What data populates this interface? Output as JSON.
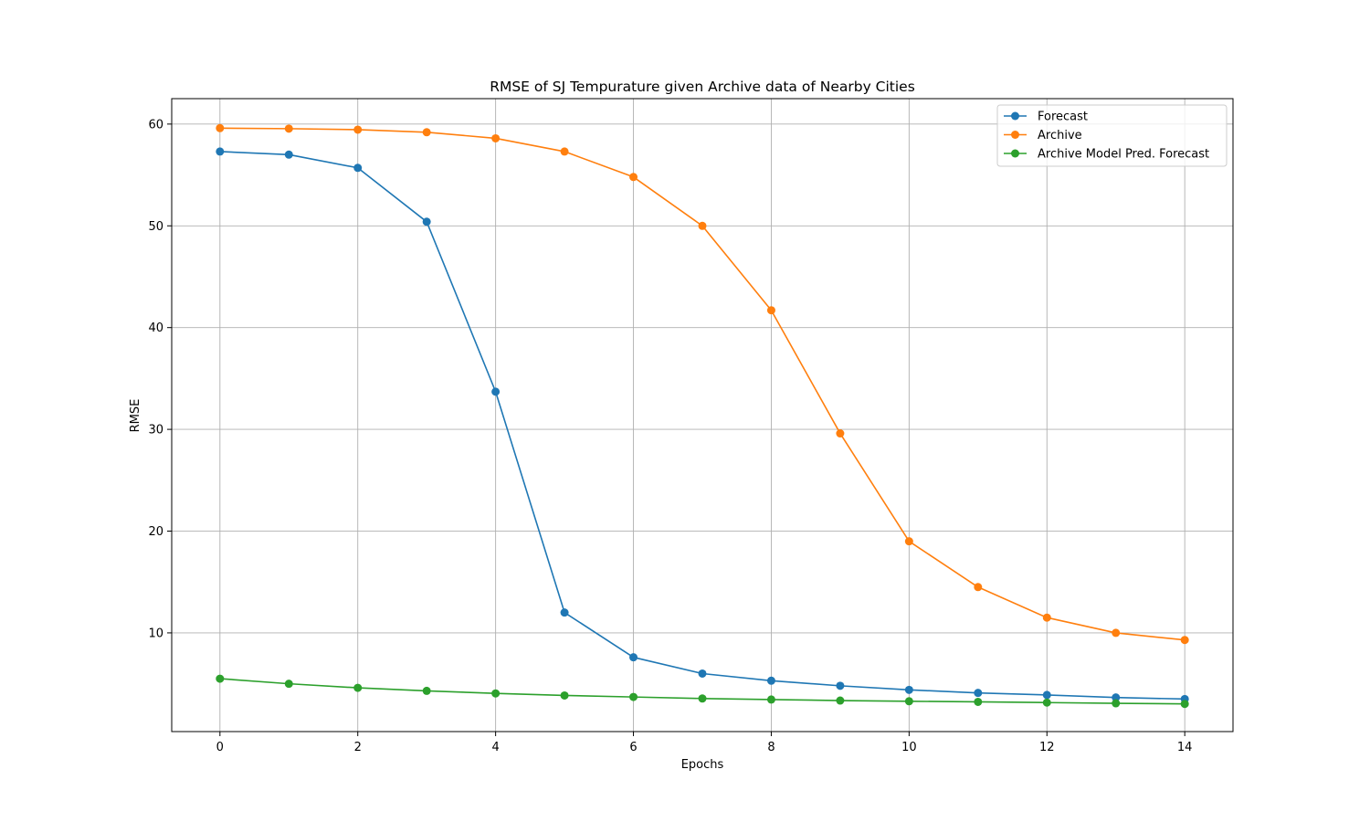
{
  "chart_data": {
    "type": "line",
    "title": "RMSE of SJ Tempurature given Archive data of Nearby Cities",
    "xlabel": "Epochs",
    "ylabel": "RMSE",
    "xlim": [
      -0.7,
      14.7
    ],
    "ylim": [
      0.3,
      62.5
    ],
    "xticks": [
      0,
      2,
      4,
      6,
      8,
      10,
      12,
      14
    ],
    "yticks": [
      10,
      20,
      30,
      40,
      50,
      60
    ],
    "grid": true,
    "legend_position": "upper-right",
    "x": [
      0,
      1,
      2,
      3,
      4,
      5,
      6,
      7,
      8,
      9,
      10,
      11,
      12,
      13,
      14
    ],
    "series": [
      {
        "name": "Forecast",
        "color": "#1f77b4",
        "values": [
          57.3,
          57.0,
          55.7,
          50.4,
          33.7,
          12.0,
          7.6,
          6.0,
          5.3,
          4.8,
          4.4,
          4.1,
          3.9,
          3.65,
          3.5
        ]
      },
      {
        "name": "Archive",
        "color": "#ff7f0e",
        "values": [
          59.6,
          59.55,
          59.45,
          59.2,
          58.6,
          57.3,
          54.8,
          50.0,
          41.7,
          29.6,
          19.0,
          14.5,
          11.5,
          10.0,
          9.3
        ]
      },
      {
        "name": "Archive Model Pred. Forecast",
        "color": "#2ca02c",
        "values": [
          5.5,
          5.0,
          4.6,
          4.3,
          4.05,
          3.85,
          3.7,
          3.55,
          3.45,
          3.35,
          3.28,
          3.22,
          3.15,
          3.08,
          3.02
        ]
      }
    ]
  }
}
